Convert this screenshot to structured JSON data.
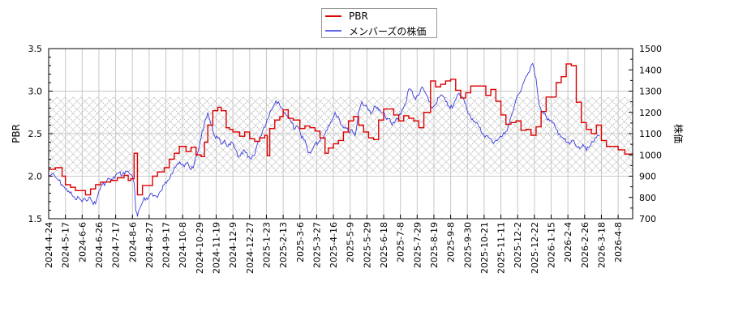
{
  "legend": {
    "items": [
      {
        "label": "PBR",
        "color": "#dd0000"
      },
      {
        "label": "メンバーズの株価",
        "color": "#4444dd"
      }
    ]
  },
  "chart_data": {
    "type": "line",
    "title": "",
    "xlabel": "",
    "ylabel_left": "PBR",
    "ylabel_right": "株価",
    "ylim_left": [
      1.5,
      3.5
    ],
    "ylim_right": [
      700,
      1500
    ],
    "yticks_left": [
      "1.5",
      "2.0",
      "2.5",
      "3.0",
      "3.5"
    ],
    "yticks_right": [
      "700",
      "800",
      "900",
      "1000",
      "1100",
      "1200",
      "1300",
      "1400",
      "1500"
    ],
    "grid": true,
    "legend_position": "top-center",
    "shaded_band_pbr": [
      2.03,
      2.93
    ],
    "x_tick_labels": [
      "2024-4-24",
      "2024-5-17",
      "2024-6-6",
      "2024-6-26",
      "2024-7-17",
      "2024-8-6",
      "2024-8-27",
      "2024-9-17",
      "2024-10-8",
      "2024-10-29",
      "2024-11-19",
      "2024-12-9",
      "2024-12-27",
      "2025-1-23",
      "2025-2-13",
      "2025-3-6",
      "2025-3-27",
      "2025-4-16",
      "2025-5-9",
      "2025-5-29",
      "2025-6-18",
      "2025-7-8",
      "2025-7-29",
      "2025-8-19",
      "2025-9-8",
      "2025-9-30",
      "2025-10-21",
      "2025-11-11",
      "2025-12-2",
      "2025-12-22",
      "2026-1-15",
      "2026-2-4",
      "2026-2-26",
      "2026-3-18",
      "2026-4-8"
    ],
    "series": [
      {
        "name": "PBR",
        "color": "#dd0000",
        "style": "step",
        "x_index": [
          0,
          0.4,
          0.8,
          1.0,
          1.3,
          1.6,
          1.9,
          2.2,
          2.5,
          2.8,
          3.1,
          3.4,
          3.7,
          4.1,
          4.5,
          4.75,
          4.9,
          5.1,
          5.3,
          5.6,
          5.9,
          6.2,
          6.5,
          6.9,
          7.2,
          7.5,
          7.8,
          8.2,
          8.5,
          8.8,
          9.1,
          9.3,
          9.5,
          9.8,
          10.1,
          10.3,
          10.6,
          10.8,
          11.0,
          11.4,
          11.7,
          12.0,
          12.3,
          12.6,
          12.9,
          13.05,
          13.2,
          13.5,
          13.8,
          14.0,
          14.3,
          14.6,
          15.0,
          15.3,
          15.6,
          15.9,
          16.2,
          16.5,
          16.7,
          17.0,
          17.3,
          17.6,
          17.9,
          18.2,
          18.5,
          18.8,
          19.1,
          19.4,
          19.7,
          20.0,
          20.3,
          20.6,
          20.9,
          21.2,
          21.5,
          21.8,
          22.1,
          22.4,
          22.8,
          23.1,
          23.4,
          23.7,
          24.0,
          24.3,
          24.6,
          24.9,
          25.2,
          25.5,
          25.8,
          26.1,
          26.4,
          26.7,
          27.0,
          27.3,
          27.6,
          27.9,
          28.2,
          28.5,
          28.8,
          29.1,
          29.4,
          29.7,
          30.0,
          30.3,
          30.6,
          30.9,
          31.2,
          31.5,
          31.8,
          32.1,
          32.4,
          32.7,
          33.0,
          33.3,
          33.6,
          34.0,
          34.4,
          34.9
        ],
        "values": [
          2.08,
          2.1,
          2.0,
          1.9,
          1.87,
          1.83,
          1.83,
          1.78,
          1.85,
          1.9,
          1.93,
          1.93,
          1.95,
          1.98,
          2.01,
          1.95,
          1.97,
          2.27,
          1.78,
          1.89,
          1.89,
          2.0,
          2.05,
          2.1,
          2.2,
          2.27,
          2.35,
          2.29,
          2.34,
          2.25,
          2.23,
          2.4,
          2.6,
          2.77,
          2.81,
          2.77,
          2.57,
          2.55,
          2.52,
          2.47,
          2.52,
          2.44,
          2.41,
          2.45,
          2.48,
          2.24,
          2.56,
          2.66,
          2.7,
          2.78,
          2.68,
          2.66,
          2.56,
          2.59,
          2.57,
          2.53,
          2.45,
          2.27,
          2.33,
          2.38,
          2.42,
          2.52,
          2.65,
          2.7,
          2.6,
          2.52,
          2.45,
          2.43,
          2.66,
          2.79,
          2.79,
          2.72,
          2.65,
          2.71,
          2.68,
          2.65,
          2.57,
          2.75,
          3.12,
          3.05,
          3.08,
          3.12,
          3.14,
          3.01,
          2.92,
          2.98,
          3.06,
          3.06,
          3.06,
          2.95,
          3.02,
          2.88,
          2.72,
          2.61,
          2.63,
          2.65,
          2.54,
          2.55,
          2.48,
          2.58,
          2.76,
          2.93,
          2.93,
          3.1,
          3.17,
          3.32,
          3.3,
          2.87,
          2.63,
          2.55,
          2.5,
          2.6,
          2.42,
          2.35,
          2.35,
          2.31,
          2.26,
          2.25
        ]
      },
      {
        "name": "メンバーズの株価",
        "color": "#4444dd",
        "style": "line",
        "x_index": [
          0,
          0.2,
          0.4,
          0.6,
          0.8,
          1.0,
          1.2,
          1.4,
          1.6,
          1.8,
          2.0,
          2.2,
          2.4,
          2.6,
          2.8,
          3.0,
          3.2,
          3.4,
          3.6,
          3.8,
          4.0,
          4.2,
          4.4,
          4.6,
          4.8,
          5.0,
          5.1,
          5.2,
          5.3,
          5.5,
          5.7,
          5.9,
          6.1,
          6.3,
          6.5,
          6.7,
          6.9,
          7.1,
          7.3,
          7.5,
          7.7,
          7.9,
          8.1,
          8.3,
          8.5,
          8.7,
          8.9,
          9.1,
          9.3,
          9.5,
          9.7,
          9.9,
          10.1,
          10.3,
          10.5,
          10.7,
          10.9,
          11.1,
          11.3,
          11.5,
          11.7,
          11.9,
          12.1,
          12.3,
          12.5,
          12.7,
          12.9,
          13.1,
          13.3,
          13.5,
          13.7,
          13.9,
          14.1,
          14.3,
          14.5,
          14.7,
          14.9,
          15.1,
          15.3,
          15.5,
          15.7,
          15.9,
          16.1,
          16.3,
          16.5,
          16.7,
          16.9,
          17.1,
          17.3,
          17.5,
          17.7,
          17.9,
          18.1,
          18.3,
          18.5,
          18.7,
          18.9,
          19.1,
          19.3,
          19.5,
          19.7,
          19.9,
          20.1,
          20.3,
          20.5,
          20.7,
          20.9,
          21.1,
          21.3,
          21.5,
          21.7,
          21.9,
          22.1,
          22.3,
          22.5,
          22.7,
          22.9,
          23.1,
          23.3,
          23.5,
          23.7,
          23.9,
          24.1,
          24.3,
          24.5,
          24.7,
          24.9,
          25.1,
          25.3,
          25.5,
          25.7,
          25.9,
          26.1,
          26.3,
          26.5,
          26.7,
          26.9,
          27.1,
          27.3,
          27.5,
          27.7,
          27.9,
          28.1,
          28.3,
          28.5,
          28.7,
          28.9,
          29.1,
          29.3,
          29.5,
          29.7,
          29.9,
          30.1,
          30.3,
          30.5,
          30.7,
          30.9,
          31.1,
          31.3,
          31.5,
          31.7,
          31.9,
          32.1,
          32.3,
          32.5,
          32.7,
          32.9,
          33.1,
          33.3,
          33.5,
          33.7,
          33.9,
          34.1,
          34.3,
          34.5,
          34.7,
          34.9
        ],
        "values": [
          900,
          910,
          895,
          880,
          860,
          840,
          830,
          810,
          790,
          800,
          780,
          790,
          800,
          780,
          770,
          830,
          860,
          870,
          890,
          880,
          905,
          915,
          905,
          925,
          915,
          900,
          870,
          740,
          710,
          760,
          800,
          790,
          820,
          810,
          800,
          830,
          860,
          880,
          910,
          940,
          960,
          955,
          945,
          965,
          930,
          960,
          1010,
          1080,
          1150,
          1200,
          1140,
          1090,
          1080,
          1050,
          1070,
          1040,
          1060,
          1030,
          990,
          1010,
          1020,
          990,
          980,
          1000,
          1060,
          1090,
          1130,
          1170,
          1210,
          1240,
          1250,
          1220,
          1200,
          1180,
          1150,
          1120,
          1130,
          1080,
          1070,
          1010,
          1020,
          1050,
          1060,
          1080,
          1100,
          1140,
          1160,
          1200,
          1180,
          1140,
          1130,
          1110,
          1120,
          1090,
          1200,
          1250,
          1230,
          1210,
          1200,
          1230,
          1210,
          1200,
          1180,
          1170,
          1140,
          1160,
          1180,
          1210,
          1240,
          1310,
          1300,
          1260,
          1280,
          1320,
          1290,
          1250,
          1220,
          1240,
          1270,
          1280,
          1250,
          1230,
          1220,
          1260,
          1290,
          1270,
          1240,
          1190,
          1170,
          1150,
          1130,
          1100,
          1090,
          1080,
          1060,
          1070,
          1080,
          1090,
          1110,
          1150,
          1200,
          1260,
          1290,
          1330,
          1370,
          1390,
          1430,
          1360,
          1230,
          1200,
          1180,
          1160,
          1150,
          1120,
          1100,
          1080,
          1060,
          1050,
          1070,
          1040,
          1030,
          1050,
          1020,
          1040,
          1060,
          1080,
          1090
        ]
      }
    ]
  }
}
